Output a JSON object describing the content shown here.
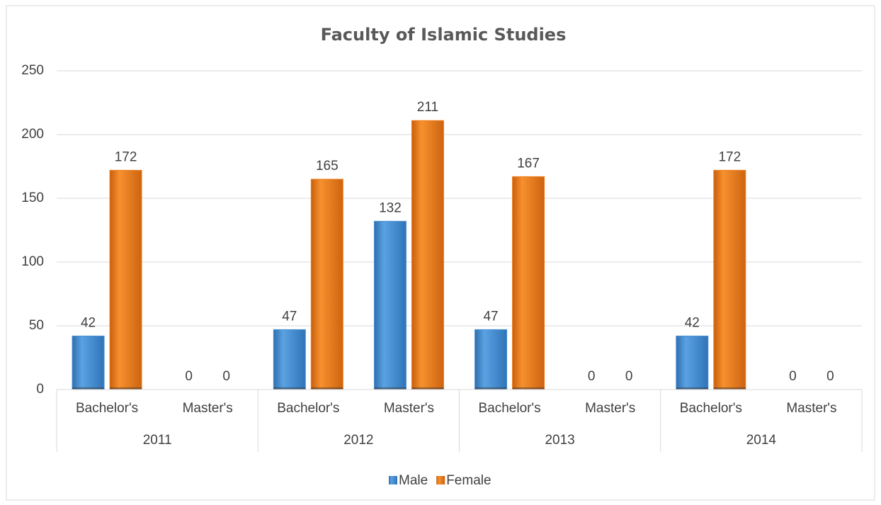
{
  "chart_data": {
    "type": "bar",
    "title": "Faculty of Islamic Studies",
    "categories": [
      "Bachelor's",
      "Master's",
      "Bachelor's",
      "Master's",
      "Bachelor's",
      "Master's",
      "Bachelor's",
      "Master's"
    ],
    "groups": [
      "2011",
      "2012",
      "2013",
      "2014"
    ],
    "series": [
      {
        "name": "Male",
        "color": "#4a8fd1",
        "values": [
          42,
          0,
          47,
          132,
          47,
          0,
          42,
          0
        ]
      },
      {
        "name": "Female",
        "color": "#ef7d1c",
        "values": [
          172,
          0,
          165,
          211,
          167,
          0,
          172,
          0
        ]
      }
    ],
    "ylim": [
      0,
      250
    ],
    "yticks": [
      0,
      50,
      100,
      150,
      200,
      250
    ],
    "grid": true,
    "legend": "bottom"
  }
}
